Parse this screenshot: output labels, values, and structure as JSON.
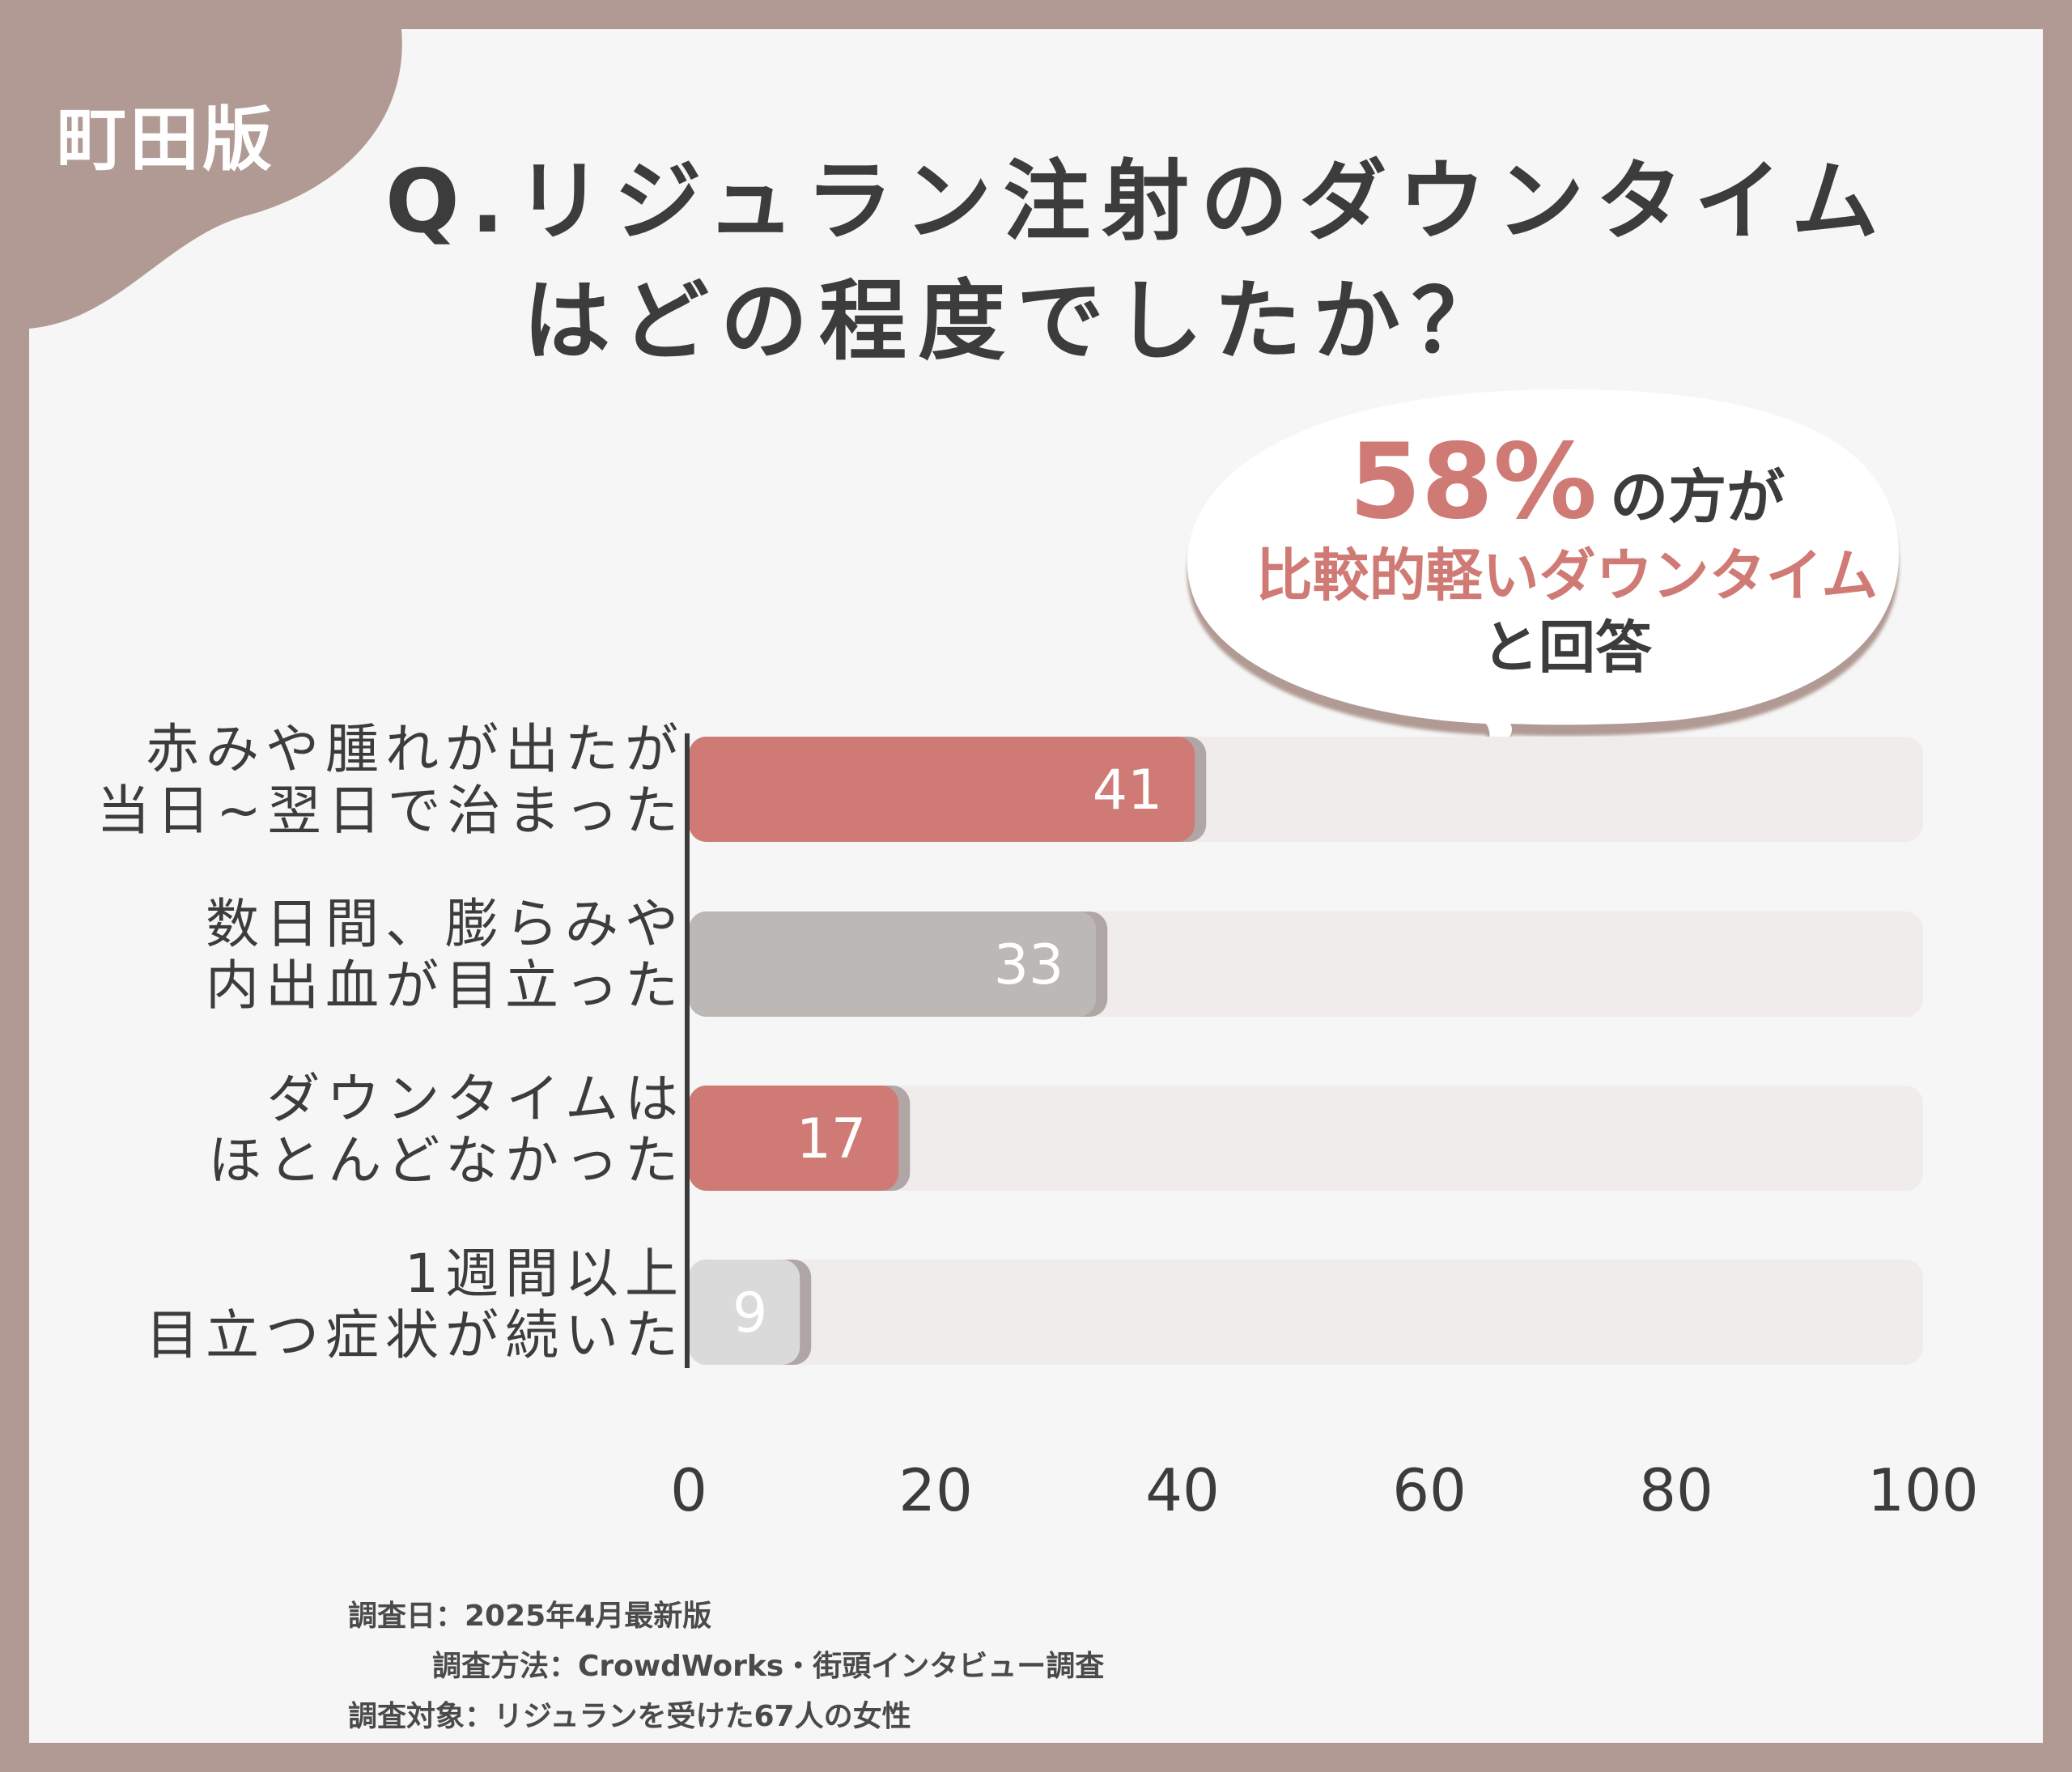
{
  "corner_label": "町田版",
  "title": {
    "line1": "Q.リジュラン注射のダウンタイム",
    "line2": "はどの程度でしたか？"
  },
  "callout": {
    "percent": "58%",
    "text1": "の方が",
    "text2": "比較的軽いダウンタイム",
    "text3": "と回答"
  },
  "colors": {
    "accent": "#d07a75",
    "gray_bar": "#bbb8b6",
    "light_bar": "#dadada",
    "frame": "#b19a93",
    "track": "#efeceb"
  },
  "chart_data": {
    "type": "bar",
    "orientation": "horizontal",
    "categories": [
      [
        "赤みや腫れが出たが",
        "当日~翌日で治まった"
      ],
      [
        "数日間、膨らみや",
        "内出血が目立った"
      ],
      [
        "ダウンタイムは",
        "ほとんどなかった"
      ],
      [
        "1週間以上",
        "目立つ症状が続いた"
      ]
    ],
    "values": [
      41,
      33,
      17,
      9
    ],
    "bar_colors": [
      "#d07a75",
      "#bbb8b6",
      "#d07a75",
      "#dadada"
    ],
    "xlim": [
      0,
      100
    ],
    "xticks": [
      0,
      20,
      40,
      60,
      80,
      100
    ],
    "grid": false
  },
  "footer": {
    "date": "調査日：2025年4月最新版",
    "method": "調査方法：CrowdWorks・街頭インタビュー調査",
    "target": "調査対象：リジュランを受けた67人の女性"
  }
}
